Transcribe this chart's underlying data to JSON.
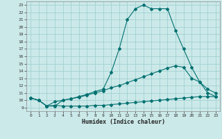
{
  "xlabel": "Humidex (Indice chaleur)",
  "bg_color": "#cce9e9",
  "line_color": "#007070",
  "grid_color": "#99cccc",
  "xlim": [
    -0.5,
    23.5
  ],
  "ylim": [
    8.5,
    23.5
  ],
  "xticks": [
    0,
    1,
    2,
    3,
    4,
    5,
    6,
    7,
    8,
    9,
    10,
    11,
    12,
    13,
    14,
    15,
    16,
    17,
    18,
    19,
    20,
    21,
    22,
    23
  ],
  "yticks": [
    9,
    10,
    11,
    12,
    13,
    14,
    15,
    16,
    17,
    18,
    19,
    20,
    21,
    22,
    23
  ],
  "line1_x": [
    0,
    1,
    2,
    3,
    4,
    5,
    6,
    7,
    8,
    9,
    10,
    11,
    12,
    13,
    14,
    15,
    16,
    17,
    18,
    19,
    20,
    21,
    22,
    23
  ],
  "line1_y": [
    10.3,
    10.0,
    9.2,
    9.3,
    9.2,
    9.2,
    9.2,
    9.2,
    9.3,
    9.3,
    9.4,
    9.5,
    9.6,
    9.7,
    9.8,
    9.9,
    10.0,
    10.1,
    10.2,
    10.3,
    10.4,
    10.5,
    10.5,
    10.5
  ],
  "line2_x": [
    0,
    1,
    2,
    3,
    4,
    5,
    6,
    7,
    8,
    9,
    10,
    11,
    12,
    13,
    14,
    15,
    16,
    17,
    18,
    19,
    20,
    21,
    22,
    23
  ],
  "line2_y": [
    10.3,
    10.0,
    9.2,
    9.8,
    10.0,
    10.2,
    10.4,
    10.7,
    11.0,
    11.3,
    11.7,
    12.0,
    12.4,
    12.8,
    13.2,
    13.6,
    14.0,
    14.4,
    14.7,
    14.5,
    13.0,
    12.5,
    11.5,
    11.0
  ],
  "line3_x": [
    0,
    1,
    2,
    3,
    4,
    5,
    6,
    7,
    8,
    9,
    10,
    11,
    12,
    13,
    14,
    15,
    16,
    17,
    18,
    19,
    20,
    21,
    22,
    23
  ],
  "line3_y": [
    10.3,
    10.0,
    9.2,
    9.2,
    10.0,
    10.2,
    10.5,
    10.8,
    11.2,
    11.5,
    13.8,
    17.0,
    21.0,
    22.5,
    23.0,
    22.5,
    22.5,
    22.5,
    19.5,
    17.0,
    14.5,
    12.5,
    11.0,
    10.5
  ]
}
